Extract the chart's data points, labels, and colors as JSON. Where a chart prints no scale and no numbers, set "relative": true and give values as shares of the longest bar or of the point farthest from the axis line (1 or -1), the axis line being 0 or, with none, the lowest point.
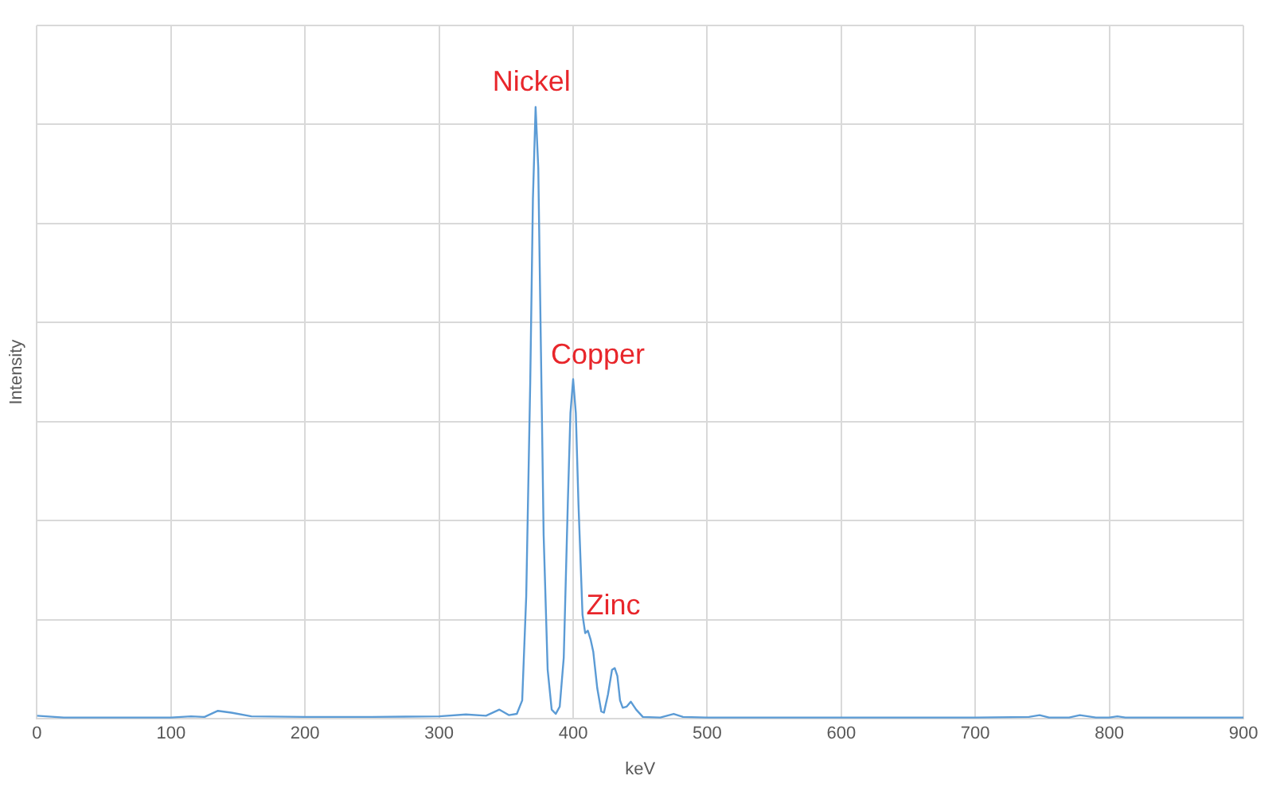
{
  "chart_data": {
    "type": "line",
    "xlabel": "keV",
    "ylabel": "Intensity",
    "relative": true,
    "grid": true,
    "legend": false,
    "marker": "none",
    "line_style": "solid",
    "xlim": [
      0,
      900
    ],
    "xticks": [
      0,
      100,
      200,
      300,
      400,
      500,
      600,
      700,
      800,
      900
    ],
    "annotations": [
      {
        "text": "Nickel",
        "x": 372,
        "y": 1
      },
      {
        "text": "Copper",
        "x": 400,
        "y": 0.555
      },
      {
        "text": "Zinc",
        "x": 411,
        "y": 0.144
      }
    ],
    "series": [
      {
        "color": "#5b9bd5",
        "x": [
          0,
          20,
          100,
          115,
          125,
          135,
          145,
          160,
          200,
          250,
          300,
          320,
          335,
          345,
          352,
          358,
          362,
          365,
          368,
          370,
          372,
          374,
          376,
          378,
          381,
          384,
          387,
          390,
          393,
          396,
          398,
          400,
          402,
          404,
          407,
          409,
          411,
          413,
          415,
          418,
          421,
          423,
          426,
          429,
          431,
          433,
          435,
          437,
          440,
          443,
          447,
          452,
          465,
          475,
          482,
          500,
          600,
          700,
          740,
          748,
          755,
          770,
          778,
          790,
          800,
          806,
          812,
          900
        ],
        "values": [
          0.005,
          0.002,
          0.002,
          0.004,
          0.003,
          0.013,
          0.01,
          0.004,
          0.003,
          0.003,
          0.004,
          0.007,
          0.005,
          0.015,
          0.006,
          0.008,
          0.03,
          0.2,
          0.55,
          0.85,
          1,
          0.9,
          0.6,
          0.3,
          0.08,
          0.015,
          0.008,
          0.02,
          0.1,
          0.35,
          0.5,
          0.555,
          0.5,
          0.35,
          0.17,
          0.14,
          0.144,
          0.13,
          0.11,
          0.05,
          0.012,
          0.01,
          0.04,
          0.08,
          0.083,
          0.07,
          0.03,
          0.018,
          0.02,
          0.028,
          0.015,
          0.003,
          0.002,
          0.008,
          0.003,
          0.002,
          0.002,
          0.002,
          0.003,
          0.006,
          0.002,
          0.002,
          0.006,
          0.002,
          0.002,
          0.004,
          0.002,
          0.002
        ]
      }
    ]
  }
}
